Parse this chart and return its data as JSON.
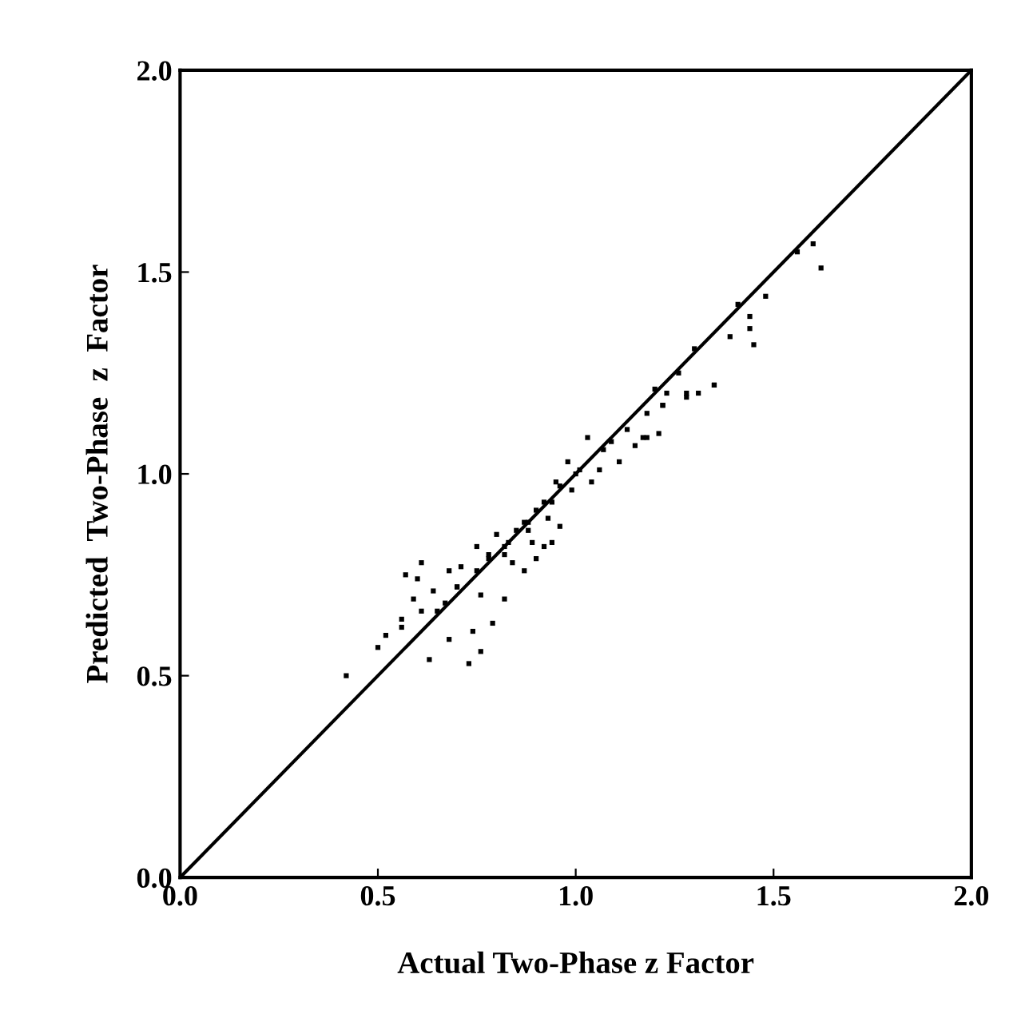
{
  "chart_data": {
    "type": "scatter",
    "xlabel": "Actual Two-Phase z Factor",
    "ylabel": "Predicted  Two-Phase  z  Factor",
    "xlim": [
      0,
      2
    ],
    "ylim": [
      0,
      2
    ],
    "xticks": [
      {
        "value": 0,
        "label": "0.0"
      },
      {
        "value": 0.5,
        "label": "0.5"
      },
      {
        "value": 1,
        "label": "1.0"
      },
      {
        "value": 1.5,
        "label": "1.5"
      },
      {
        "value": 2,
        "label": "2.0"
      }
    ],
    "yticks": [
      {
        "value": 0,
        "label": "0.0"
      },
      {
        "value": 0.5,
        "label": "0.5"
      },
      {
        "value": 1,
        "label": "1.0"
      },
      {
        "value": 1.5,
        "label": "1.5"
      },
      {
        "value": 2,
        "label": "2.0"
      }
    ],
    "grid": false,
    "legend": false,
    "series": [
      {
        "color": "#000000",
        "marker": "square",
        "x": [
          0.42,
          0.5,
          0.52,
          0.56,
          0.57,
          0.56,
          0.6,
          0.61,
          0.59,
          0.61,
          0.63,
          0.64,
          0.68,
          0.67,
          0.68,
          0.7,
          0.71,
          0.73,
          0.74,
          0.76,
          0.75,
          0.76,
          0.78,
          0.79,
          0.8,
          0.82,
          0.82,
          0.83,
          0.84,
          0.87,
          0.87,
          0.89,
          0.9,
          0.88,
          0.9,
          0.92,
          0.93,
          0.94,
          0.96,
          0.94,
          0.95,
          0.99,
          0.98,
          1.01,
          1.03,
          1.04,
          1.06,
          1.07,
          1.09,
          1.11,
          1.13,
          1.15,
          1.17,
          1.18,
          1.21,
          1.22,
          1.2,
          1.28,
          1.31,
          1.35,
          0.78,
          0.82,
          0.85,
          0.88,
          0.92,
          0.96,
          1.0,
          0.75,
          0.7,
          0.65,
          1.56,
          1.6,
          1.62,
          1.41,
          1.48,
          1.44,
          1.44,
          1.45,
          1.39,
          1.3,
          1.35,
          1.26,
          1.28,
          1.23,
          1.22,
          1.18
        ],
        "values": [
          0.5,
          0.57,
          0.6,
          0.62,
          0.75,
          0.64,
          0.74,
          0.78,
          0.69,
          0.66,
          0.54,
          0.71,
          0.76,
          0.68,
          0.59,
          0.72,
          0.77,
          0.53,
          0.61,
          0.56,
          0.82,
          0.7,
          0.79,
          0.63,
          0.85,
          0.69,
          0.8,
          0.83,
          0.78,
          0.76,
          0.88,
          0.83,
          0.79,
          0.86,
          0.91,
          0.82,
          0.89,
          0.83,
          0.87,
          0.93,
          0.98,
          0.96,
          1.03,
          1.01,
          1.09,
          0.98,
          1.01,
          1.06,
          1.08,
          1.03,
          1.11,
          1.07,
          1.09,
          1.15,
          1.1,
          1.17,
          1.21,
          1.2,
          1.2,
          1.22,
          0.8,
          0.82,
          0.86,
          0.88,
          0.93,
          0.97,
          1.0,
          0.76,
          0.72,
          0.66,
          1.55,
          1.57,
          1.51,
          1.42,
          1.44,
          1.39,
          1.36,
          1.32,
          1.34,
          1.31,
          1.22,
          1.25,
          1.19,
          1.2,
          1.17,
          1.09
        ]
      },
      {
        "type": "line",
        "color": "#000000",
        "marker": "none",
        "line_style": "solid",
        "x": [
          0,
          2
        ],
        "values": [
          0,
          2
        ]
      }
    ]
  }
}
